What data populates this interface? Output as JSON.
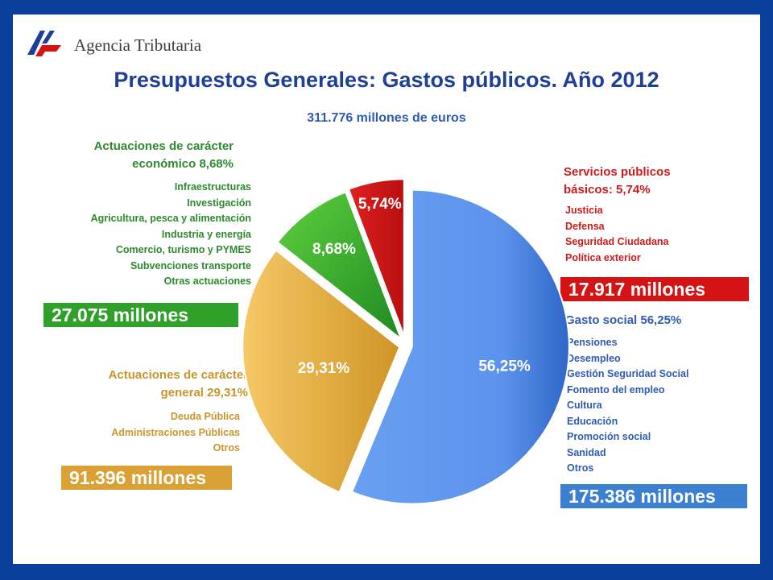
{
  "header": {
    "logo_text": "Agencia Tributaria",
    "title": "Presupuestos Generales: Gastos públicos. Año 2012",
    "subtitle": "311.776 millones de euros"
  },
  "groups": {
    "economico": {
      "title_line1": "Actuaciones de carácter",
      "title_line2": "económico 8,68%",
      "items": [
        "Infraestructuras",
        "Investigación",
        "Agricultura, pesca y alimentación",
        "Industria y energía",
        "Comercio, turismo y PYMES",
        "Subvenciones transporte",
        "Otras actuaciones"
      ],
      "amount": "27.075 millones"
    },
    "basicos": {
      "title_line1": "Servicios públicos",
      "title_line2": "básicos: 5,74%",
      "items": [
        "Justicia",
        "Defensa",
        "Seguridad Ciudadana",
        "Política exterior"
      ],
      "amount": "17.917  millones"
    },
    "social": {
      "title": "Gasto social 56,25%",
      "items": [
        "Pensiones",
        "Desempleo",
        "Gestión  Seguridad Social",
        "Fomento del empleo",
        "Cultura",
        "Educación",
        "Promoción social",
        "Sanidad",
        "Otros"
      ],
      "amount": "175.386 millones"
    },
    "general": {
      "title_line1": "Actuaciones de carácter",
      "title_line2": "general  29,31%",
      "items": [
        "Deuda Pública",
        "Administraciones Públicas",
        "Otros"
      ],
      "amount": "91.396 millones"
    }
  },
  "colors": {
    "social": "#4f86e0",
    "general": "#e3aa3c",
    "economico": "#2fa02a",
    "basicos": "#d41414",
    "title": "#1f3f95",
    "economico_text": "#2e8a2e",
    "general_text": "#c8962a",
    "basicos_text": "#cc1b1b",
    "social_text": "#2f5bb3"
  },
  "chart_data": {
    "type": "pie",
    "title": "Presupuestos Generales: Gastos públicos. Año 2012",
    "subtitle": "311.776 millones de euros",
    "slices": [
      {
        "name": "Gasto social",
        "value": 56.25,
        "label": "56,25%",
        "amount": "175.386 millones"
      },
      {
        "name": "Actuaciones de carácter general",
        "value": 29.31,
        "label": "29,31%",
        "amount": "91.396 millones"
      },
      {
        "name": "Actuaciones de carácter económico",
        "value": 8.68,
        "label": "8,68%",
        "amount": "27.075 millones"
      },
      {
        "name": "Servicios públicos básicos",
        "value": 5.74,
        "label": "5,74%",
        "amount": "17.917 millones"
      }
    ]
  }
}
